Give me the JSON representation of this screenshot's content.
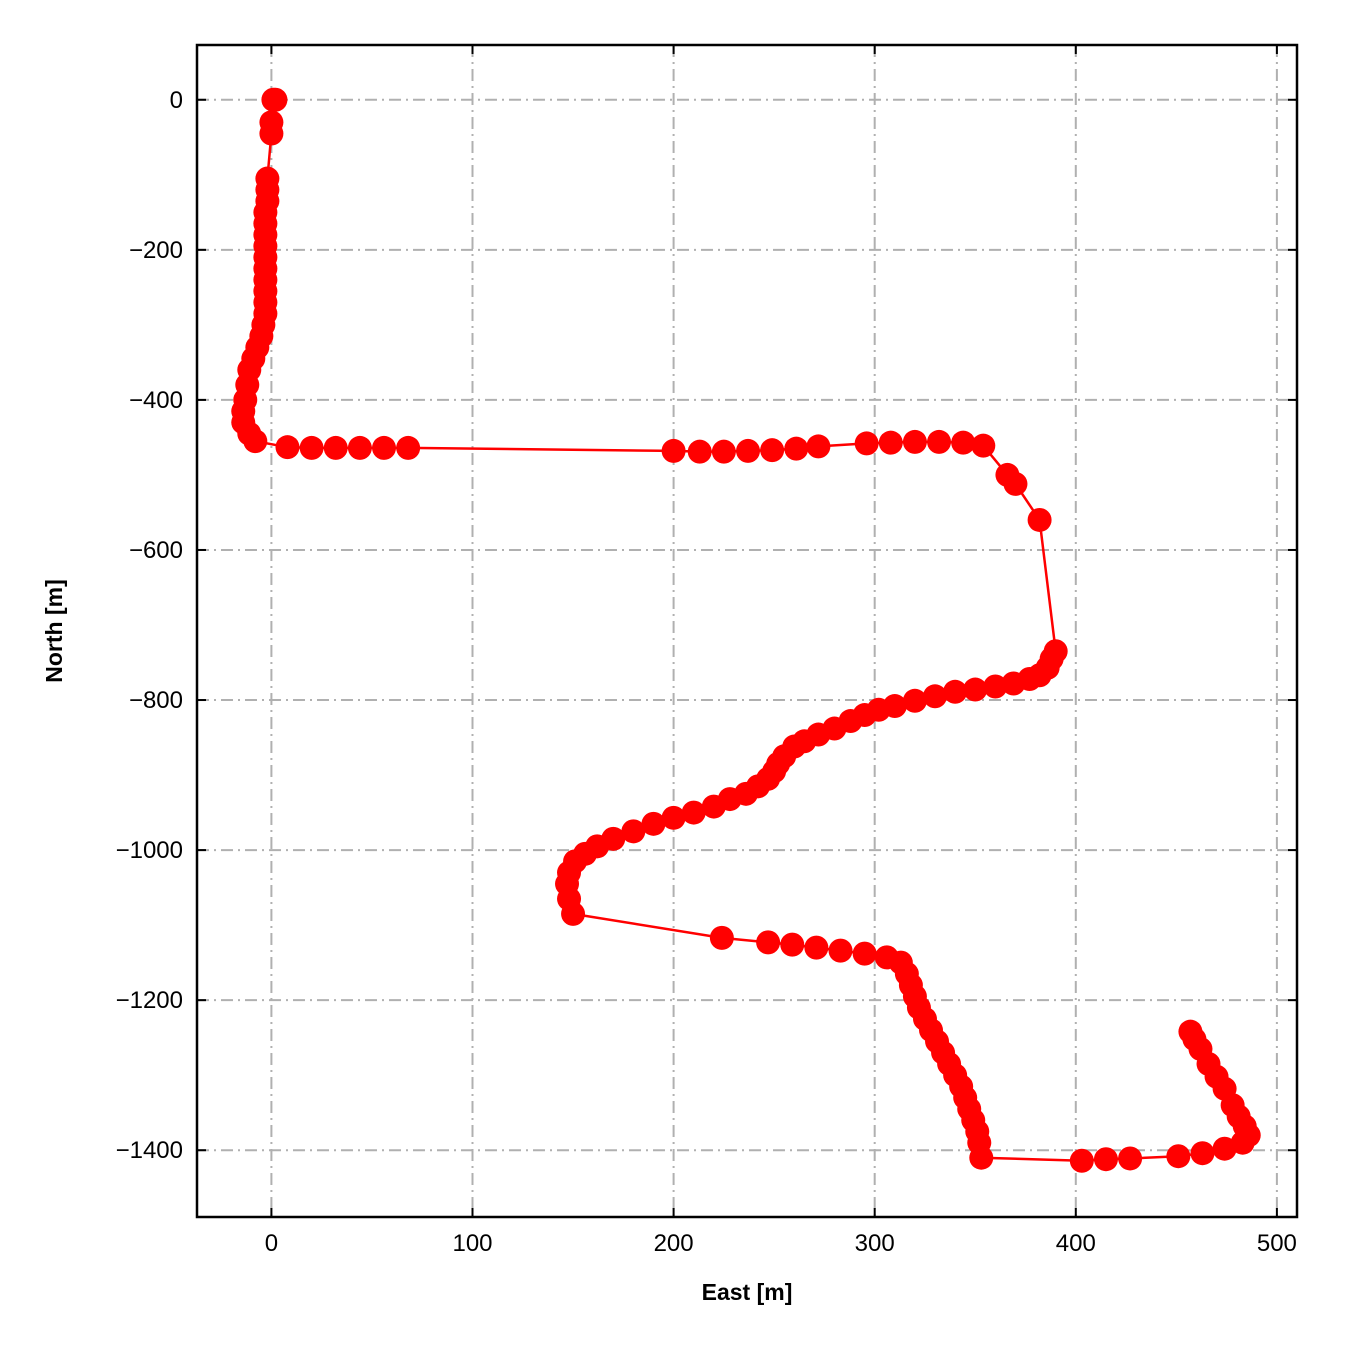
{
  "chart_data": {
    "type": "line",
    "xlabel": "East [m]",
    "ylabel": "North [m]",
    "x": [
      1,
      2,
      0,
      0,
      -2,
      -2,
      -2,
      -3,
      -3,
      -3,
      -3,
      -3,
      -3,
      -3,
      -3,
      -3,
      -3,
      -4,
      -5,
      -7,
      -9,
      -11,
      -12,
      -13,
      -14,
      -14,
      -11,
      -8,
      8,
      20,
      32,
      44,
      56,
      68,
      200,
      213,
      225,
      237,
      249,
      261,
      272,
      296,
      308,
      320,
      332,
      344,
      354,
      366,
      370,
      382,
      390,
      388,
      386,
      382,
      377,
      369,
      360,
      350,
      340,
      330,
      320,
      310,
      302,
      295,
      288,
      280,
      272,
      265,
      260,
      255,
      252,
      250,
      247,
      242,
      236,
      228,
      220,
      210,
      200,
      190,
      180,
      170,
      162,
      156,
      151,
      148,
      147,
      148,
      150,
      224,
      247,
      259,
      271,
      283,
      295,
      306,
      313,
      316,
      318,
      320,
      322,
      325,
      328,
      331,
      334,
      337,
      340,
      343,
      345,
      347,
      349,
      351,
      352,
      353,
      403,
      415,
      427,
      451,
      463,
      474,
      483,
      486,
      484,
      481,
      478,
      474,
      470,
      466,
      462,
      459,
      457
    ],
    "values": [
      0,
      0,
      -30,
      -45,
      -105,
      -120,
      -135,
      -150,
      -165,
      -180,
      -195,
      -210,
      -225,
      -240,
      -255,
      -270,
      -285,
      -300,
      -315,
      -330,
      -345,
      -360,
      -380,
      -400,
      -415,
      -430,
      -445,
      -455,
      -463,
      -464,
      -464,
      -464,
      -464,
      -464,
      -468,
      -469,
      -469,
      -468,
      -467,
      -465,
      -462,
      -458,
      -457,
      -456,
      -456,
      -457,
      -461,
      -500,
      -512,
      -560,
      -735,
      -745,
      -757,
      -767,
      -772,
      -778,
      -782,
      -786,
      -789,
      -795,
      -801,
      -808,
      -813,
      -820,
      -828,
      -838,
      -846,
      -855,
      -862,
      -875,
      -885,
      -895,
      -905,
      -915,
      -925,
      -932,
      -942,
      -950,
      -957,
      -965,
      -975,
      -985,
      -995,
      -1005,
      -1015,
      -1030,
      -1045,
      -1065,
      -1085,
      -1117,
      -1123,
      -1126,
      -1130,
      -1134,
      -1138,
      -1143,
      -1150,
      -1165,
      -1180,
      -1195,
      -1210,
      -1225,
      -1240,
      -1255,
      -1270,
      -1285,
      -1300,
      -1315,
      -1330,
      -1345,
      -1360,
      -1375,
      -1390,
      -1410,
      -1414,
      -1412,
      -1411,
      -1408,
      -1404,
      -1398,
      -1390,
      -1380,
      -1368,
      -1355,
      -1340,
      -1318,
      -1302,
      -1285,
      -1265,
      -1252,
      -1242
    ],
    "color": "#ff0000",
    "xlim": [
      -37,
      510
    ],
    "xticks": [
      0,
      100,
      200,
      300,
      400,
      500
    ],
    "ylim": [
      -1489,
      73
    ],
    "yticks": [
      {
        "value": -1400,
        "label": "−1400"
      },
      {
        "value": -1200,
        "label": "−1200"
      },
      {
        "value": -1000,
        "label": "−1000"
      },
      {
        "value": -800,
        "label": "−800"
      },
      {
        "value": -600,
        "label": "−600"
      },
      {
        "value": -400,
        "label": "−400"
      },
      {
        "value": -200,
        "label": "−200"
      },
      0
    ],
    "grid": true
  }
}
